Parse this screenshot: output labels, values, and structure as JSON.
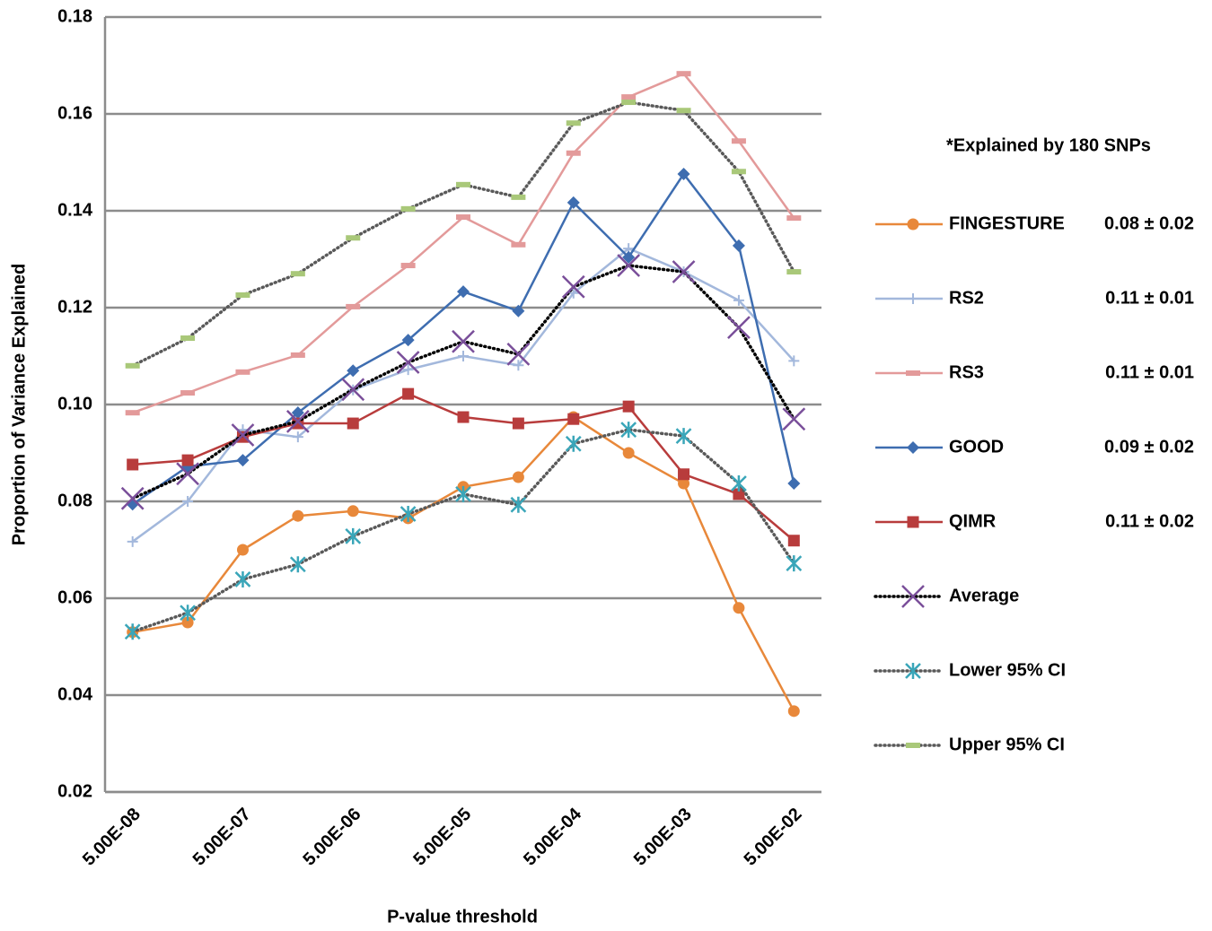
{
  "chart_data": {
    "type": "line",
    "x_label": "P-value threshold",
    "y_label": "Proportion of Variance Explained",
    "legend_title": "*Explained by 180 SNPs",
    "legend_position": "right",
    "grid": true,
    "categories": [
      "5.00E-08",
      null,
      "5.00E-07",
      null,
      "5.00E-06",
      null,
      "5.00E-05",
      null,
      "5.00E-04",
      null,
      "5.00E-03",
      null,
      "5.00E-02"
    ],
    "ylim": [
      0.02,
      0.18
    ],
    "yticks": [
      0.02,
      0.04,
      0.06,
      0.08,
      {
        "value": 0.1,
        "label": "0.10"
      },
      0.12,
      0.14,
      0.16,
      0.18
    ],
    "series": [
      {
        "name": "FINGESTURE",
        "annotation": "0.08 ± 0.02",
        "color": "#e8883a",
        "marker": "circle",
        "marker_color": "#e8883a",
        "dotted": false,
        "values": [
          0.053,
          0.055,
          0.07,
          0.077,
          0.078,
          0.0765,
          0.083,
          0.085,
          0.0974,
          0.09,
          0.0837,
          0.058,
          0.0367
        ]
      },
      {
        "name": "RS2",
        "annotation": "0.11 ± 0.01",
        "color": "#a3b8dc",
        "marker": "plus",
        "marker_color": "#a3b8dc",
        "dotted": false,
        "values": [
          0.0717,
          0.08,
          0.0948,
          0.0933,
          0.103,
          0.1072,
          0.11,
          0.1081,
          0.123,
          0.1322,
          0.1274,
          0.1215,
          0.109
        ]
      },
      {
        "name": "RS3",
        "annotation": "0.11 ± 0.01",
        "color": "#e39a9a",
        "marker": "dash",
        "marker_color": "#e39a9a",
        "dotted": false,
        "values": [
          0.0983,
          0.1024,
          0.1067,
          0.1102,
          0.1202,
          0.1287,
          0.1387,
          0.133,
          0.1519,
          0.1635,
          0.1683,
          0.1544,
          0.1385
        ]
      },
      {
        "name": "GOOD",
        "annotation": "0.09 ± 0.02",
        "color": "#3e6db0",
        "marker": "diamond",
        "marker_color": "#3e6db0",
        "dotted": false,
        "values": [
          0.0794,
          0.0872,
          0.0885,
          0.0983,
          0.107,
          0.1133,
          0.1233,
          0.1193,
          0.1417,
          0.1304,
          0.1476,
          0.1328,
          0.0837
        ]
      },
      {
        "name": "QIMR",
        "annotation": "0.11 ± 0.02",
        "color": "#b83c3c",
        "marker": "square",
        "marker_color": "#b83c3c",
        "dotted": false,
        "values": [
          0.0876,
          0.0885,
          0.0933,
          0.0961,
          0.0961,
          0.1022,
          0.0974,
          0.0961,
          0.097,
          0.0996,
          0.0856,
          0.0815,
          0.0719
        ]
      },
      {
        "name": "Average",
        "color": "#000000",
        "marker": "x",
        "marker_color": "#7a4f9a",
        "dotted": true,
        "values": [
          0.0806,
          0.0857,
          0.0937,
          0.0965,
          0.1031,
          0.1087,
          0.113,
          0.1104,
          0.1243,
          0.1287,
          0.1274,
          0.1159,
          0.097
        ]
      },
      {
        "name": "Lower 95% CI",
        "color": "#595959",
        "marker": "asterisk",
        "marker_color": "#3aa6b9",
        "dotted": true,
        "values": [
          0.0531,
          0.057,
          0.0639,
          0.067,
          0.0728,
          0.0774,
          0.0815,
          0.0793,
          0.0919,
          0.0948,
          0.0935,
          0.0837,
          0.0672
        ]
      },
      {
        "name": "Upper 95% CI",
        "color": "#595959",
        "marker": "dash",
        "marker_color": "#a9c879",
        "dotted": true,
        "values": [
          0.108,
          0.1137,
          0.1226,
          0.127,
          0.1344,
          0.1404,
          0.1454,
          0.1428,
          0.1581,
          0.1624,
          0.1607,
          0.1481,
          0.1274
        ]
      }
    ]
  }
}
